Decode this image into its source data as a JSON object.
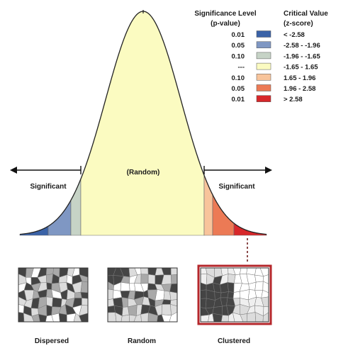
{
  "legend": {
    "significance_header": "Significance Level",
    "significance_subheader": "(p-value)",
    "critical_header": "Critical Value",
    "critical_subheader": "(z-score)",
    "rows": [
      {
        "p": "0.01",
        "z": "< -2.58",
        "color": "#3a62a7"
      },
      {
        "p": "0.05",
        "z": "-2.58 - -1.96",
        "color": "#7f97c3"
      },
      {
        "p": "0.10",
        "z": "-1.96 - -1.65",
        "color": "#c6d3c6"
      },
      {
        "p": "---",
        "z": "-1.65 - 1.65",
        "color": "#fbfbc1"
      },
      {
        "p": "0.10",
        "z": "1.65 - 1.96",
        "color": "#f8c49b"
      },
      {
        "p": "0.05",
        "z": "1.96 - 2.58",
        "color": "#ec7a55"
      },
      {
        "p": "0.01",
        "z": "> 2.58",
        "color": "#d7272a"
      }
    ]
  },
  "curve": {
    "center_label": "(Random)",
    "left_label": "Significant",
    "right_label": "Significant"
  },
  "maps": [
    {
      "label": "Dispersed"
    },
    {
      "label": "Random"
    },
    {
      "label": "Clustered"
    }
  ],
  "colors": {
    "highlight": "#b5272b",
    "connector": "#8b4a4a",
    "cluster": "#444444",
    "light": "#dcdcdc",
    "mid": "#a9a9a9"
  }
}
